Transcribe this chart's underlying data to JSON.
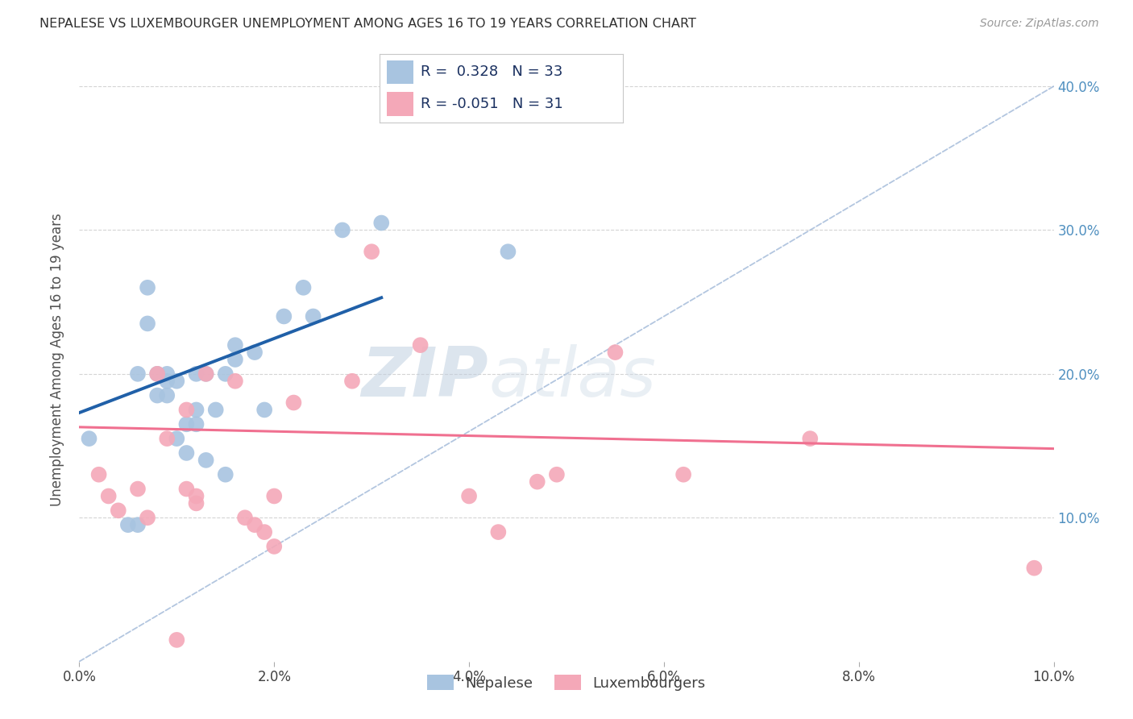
{
  "title": "NEPALESE VS LUXEMBOURGER UNEMPLOYMENT AMONG AGES 16 TO 19 YEARS CORRELATION CHART",
  "source": "Source: ZipAtlas.com",
  "ylabel": "Unemployment Among Ages 16 to 19 years",
  "xlim": [
    0.0,
    0.1
  ],
  "ylim": [
    0.0,
    0.42
  ],
  "xticks": [
    0.0,
    0.02,
    0.04,
    0.06,
    0.08,
    0.1
  ],
  "yticks": [
    0.1,
    0.2,
    0.3,
    0.4
  ],
  "nepalese_R": 0.328,
  "nepalese_N": 33,
  "luxembourger_R": -0.051,
  "luxembourger_N": 31,
  "nepalese_color": "#a8c4e0",
  "luxembourger_color": "#f4a8b8",
  "nepalese_line_color": "#2060a8",
  "luxembourger_line_color": "#f07090",
  "diagonal_line_color": "#a0b8d8",
  "background_color": "#ffffff",
  "grid_color": "#d0d0d0",
  "title_color": "#303030",
  "watermark_zip": "ZIP",
  "watermark_atlas": "atlas",
  "nepalese_x": [
    0.001,
    0.005,
    0.006,
    0.006,
    0.007,
    0.007,
    0.008,
    0.008,
    0.009,
    0.009,
    0.009,
    0.01,
    0.01,
    0.011,
    0.011,
    0.012,
    0.012,
    0.012,
    0.013,
    0.013,
    0.014,
    0.015,
    0.015,
    0.016,
    0.016,
    0.018,
    0.019,
    0.021,
    0.023,
    0.024,
    0.027,
    0.031,
    0.044
  ],
  "nepalese_y": [
    0.155,
    0.095,
    0.095,
    0.2,
    0.235,
    0.26,
    0.185,
    0.2,
    0.185,
    0.195,
    0.2,
    0.155,
    0.195,
    0.145,
    0.165,
    0.165,
    0.2,
    0.175,
    0.2,
    0.14,
    0.175,
    0.13,
    0.2,
    0.22,
    0.21,
    0.215,
    0.175,
    0.24,
    0.26,
    0.24,
    0.3,
    0.305,
    0.285
  ],
  "luxembourger_x": [
    0.002,
    0.003,
    0.004,
    0.006,
    0.007,
    0.008,
    0.009,
    0.01,
    0.011,
    0.011,
    0.012,
    0.012,
    0.013,
    0.016,
    0.017,
    0.018,
    0.019,
    0.02,
    0.02,
    0.022,
    0.028,
    0.03,
    0.035,
    0.04,
    0.043,
    0.047,
    0.049,
    0.055,
    0.062,
    0.075,
    0.098
  ],
  "luxembourger_y": [
    0.13,
    0.115,
    0.105,
    0.12,
    0.1,
    0.2,
    0.155,
    0.015,
    0.12,
    0.175,
    0.11,
    0.115,
    0.2,
    0.195,
    0.1,
    0.095,
    0.09,
    0.08,
    0.115,
    0.18,
    0.195,
    0.285,
    0.22,
    0.115,
    0.09,
    0.125,
    0.13,
    0.215,
    0.13,
    0.155,
    0.065
  ],
  "nepalese_trend_x": [
    0.0,
    0.031
  ],
  "nepalese_trend_y": [
    0.173,
    0.253
  ],
  "luxembourger_trend_x": [
    0.0,
    0.1
  ],
  "luxembourger_trend_y": [
    0.163,
    0.148
  ],
  "legend_labels": [
    "Nepalese",
    "Luxembourgers"
  ],
  "right_ytick_color": "#5090c0",
  "left_ytick_color": "#5090c0"
}
